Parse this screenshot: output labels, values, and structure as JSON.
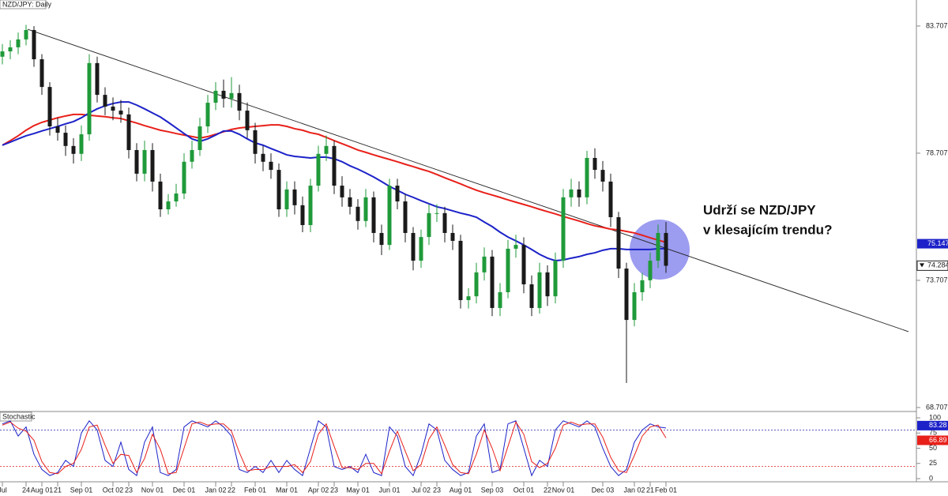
{
  "chart_data": {
    "type": "candlestick",
    "title": "NZD/JPY: Daily",
    "categories": [
      "Jul",
      null,
      null,
      "24",
      null,
      "Aug 01",
      null,
      "21",
      null,
      null,
      "Sep 01",
      null,
      null,
      null,
      "Oct 02",
      null,
      "23",
      null,
      null,
      "Nov 01",
      null,
      null,
      null,
      "Dec 01",
      null,
      null,
      null,
      "Jan 02",
      null,
      "22",
      null,
      null,
      "Feb 01",
      null,
      null,
      null,
      "Mar 01",
      null,
      null,
      null,
      "Apr 02",
      null,
      "23",
      null,
      null,
      "May 01",
      null,
      null,
      null,
      "Jun 01",
      null,
      null,
      null,
      "Jul 02",
      null,
      "23",
      null,
      null,
      "Aug 01",
      null,
      null,
      null,
      "Sep 03",
      null,
      null,
      null,
      "Oct 01",
      null,
      null,
      "22",
      null,
      "Nov 01",
      null,
      null,
      null,
      null,
      "Dec 03",
      null,
      null,
      null,
      "Jan 02",
      null,
      "21",
      null,
      "Feb 01"
    ],
    "open": [
      82.5,
      82.71,
      82.87,
      83.18,
      83.55,
      82.4,
      81.31,
      79.76,
      79.51,
      78.99,
      78.68,
      79.45,
      82.25,
      81.0,
      80.54,
      80.38,
      80.23,
      78.83,
      77.9,
      78.83,
      77.59,
      76.5,
      76.81,
      77.12,
      78.37,
      78.83,
      79.76,
      80.69,
      81.16,
      80.85,
      81.07,
      80.38,
      79.61,
      78.68,
      78.37,
      78.05,
      76.5,
      77.28,
      76.66,
      75.88,
      77.43,
      78.68,
      78.99,
      77.43,
      76.97,
      76.6,
      76.04,
      76.97,
      75.57,
      75.1,
      77.43,
      76.81,
      75.57,
      74.48,
      75.41,
      76.35,
      76.35,
      75.57,
      75.26,
      72.93,
      73.08,
      74.02,
      74.64,
      72.62,
      73.24,
      74.95,
      75.1,
      73.55,
      72.62,
      74.02,
      73.08,
      74.48,
      76.97,
      77.28,
      76.97,
      78.52,
      78.05,
      77.59,
      76.19,
      74.17,
      72.15,
      73.24,
      73.71,
      74.48,
      75.57
    ],
    "high": [
      83.0,
      83.15,
      83.45,
      83.75,
      83.7,
      82.6,
      81.5,
      80.1,
      79.8,
      79.3,
      79.8,
      82.6,
      82.5,
      81.3,
      80.9,
      80.8,
      80.5,
      79.1,
      79.2,
      79.1,
      77.9,
      77.1,
      77.5,
      78.7,
      79.2,
      80.1,
      81.0,
      81.5,
      81.6,
      81.7,
      81.4,
      80.7,
      79.9,
      79.0,
      78.7,
      78.3,
      77.6,
      77.6,
      77.0,
      77.7,
      79.0,
      79.4,
      79.2,
      77.8,
      77.3,
      76.9,
      77.3,
      77.2,
      75.9,
      77.7,
      77.7,
      77.1,
      75.8,
      75.7,
      76.7,
      76.7,
      76.6,
      75.9,
      75.5,
      73.4,
      74.4,
      75.0,
      74.9,
      73.6,
      75.3,
      75.5,
      75.4,
      73.9,
      74.4,
      74.3,
      74.8,
      77.3,
      77.7,
      77.6,
      78.8,
      78.9,
      78.4,
      77.9,
      76.4,
      74.4,
      73.6,
      74.0,
      74.8,
      75.9,
      76.0
    ],
    "low": [
      82.2,
      82.4,
      82.6,
      82.95,
      82.1,
      81.0,
      79.4,
      79.2,
      78.6,
      78.3,
      78.4,
      79.2,
      80.7,
      80.2,
      80.0,
      79.9,
      78.5,
      77.6,
      77.6,
      77.2,
      76.2,
      76.3,
      76.6,
      76.9,
      78.1,
      78.6,
      79.5,
      80.4,
      80.5,
      80.5,
      80.0,
      79.3,
      78.3,
      78.0,
      77.7,
      76.2,
      76.2,
      76.3,
      75.6,
      75.6,
      77.2,
      78.4,
      77.1,
      76.6,
      76.3,
      75.7,
      75.8,
      75.2,
      74.7,
      74.9,
      76.5,
      75.2,
      74.1,
      74.2,
      75.1,
      76.0,
      75.2,
      74.9,
      72.6,
      72.6,
      72.8,
      73.7,
      72.3,
      72.3,
      73.0,
      74.6,
      73.2,
      72.3,
      72.4,
      72.7,
      72.8,
      74.2,
      76.6,
      76.6,
      76.7,
      77.7,
      77.2,
      75.8,
      73.8,
      69.67,
      71.9,
      72.9,
      73.4,
      74.2,
      74.0
    ],
    "close": [
      82.71,
      82.87,
      83.18,
      83.55,
      82.4,
      81.31,
      79.76,
      79.51,
      78.99,
      78.68,
      79.45,
      82.25,
      81.0,
      80.54,
      80.38,
      80.23,
      78.83,
      77.9,
      78.83,
      77.59,
      76.5,
      76.81,
      77.12,
      78.37,
      78.83,
      79.76,
      80.69,
      81.16,
      80.85,
      81.07,
      80.38,
      79.61,
      78.68,
      78.37,
      78.05,
      76.5,
      77.28,
      76.66,
      75.88,
      77.43,
      78.68,
      78.99,
      77.43,
      76.97,
      76.6,
      76.04,
      76.97,
      75.57,
      75.1,
      77.43,
      76.81,
      75.57,
      74.48,
      75.41,
      76.35,
      76.35,
      75.57,
      75.26,
      72.93,
      73.08,
      74.02,
      74.64,
      72.62,
      73.24,
      74.95,
      75.1,
      73.55,
      72.62,
      74.02,
      73.08,
      74.48,
      76.97,
      77.28,
      76.97,
      78.52,
      78.05,
      77.59,
      76.19,
      74.17,
      72.15,
      73.24,
      73.71,
      74.48,
      75.57,
      74.28
    ],
    "up_color": "#1f9a3a",
    "down_color": "#1a1a1a",
    "series": [
      {
        "color": "#e8201a",
        "values": [
          79.02,
          79.2,
          79.39,
          79.61,
          79.79,
          79.92,
          80.01,
          80.1,
          80.17,
          80.23,
          80.23,
          80.2,
          80.17,
          80.14,
          80.1,
          80.07,
          79.98,
          79.89,
          79.79,
          79.7,
          79.61,
          79.55,
          79.48,
          79.42,
          79.36,
          79.3,
          79.36,
          79.45,
          79.55,
          79.64,
          79.7,
          79.73,
          79.76,
          79.79,
          79.82,
          79.82,
          79.76,
          79.67,
          79.61,
          79.51,
          79.45,
          79.33,
          79.2,
          79.08,
          78.96,
          78.83,
          78.74,
          78.64,
          78.55,
          78.46,
          78.37,
          78.27,
          78.18,
          78.08,
          77.99,
          77.87,
          77.74,
          77.62,
          77.5,
          77.37,
          77.25,
          77.15,
          77.06,
          76.97,
          76.87,
          76.78,
          76.69,
          76.6,
          76.5,
          76.41,
          76.32,
          76.22,
          76.13,
          76.04,
          75.94,
          75.85,
          75.79,
          75.72,
          75.69,
          75.63,
          75.57,
          75.48,
          75.38,
          75.29,
          75.2
        ]
      },
      {
        "color": "#1c22c8",
        "values": [
          79.02,
          79.14,
          79.27,
          79.39,
          79.48,
          79.58,
          79.67,
          79.76,
          79.86,
          79.95,
          80.1,
          80.29,
          80.45,
          80.57,
          80.66,
          80.72,
          80.72,
          80.6,
          80.45,
          80.29,
          80.13,
          79.92,
          79.7,
          79.48,
          79.27,
          79.17,
          79.27,
          79.42,
          79.58,
          79.58,
          79.45,
          79.27,
          79.11,
          79.02,
          78.89,
          78.77,
          78.64,
          78.58,
          78.55,
          78.52,
          78.55,
          78.55,
          78.49,
          78.37,
          78.21,
          78.08,
          77.93,
          77.77,
          77.59,
          77.4,
          77.25,
          77.09,
          76.97,
          76.84,
          76.72,
          76.6,
          76.53,
          76.44,
          76.35,
          76.28,
          76.19,
          76.0,
          75.82,
          75.6,
          75.41,
          75.26,
          75.1,
          74.92,
          74.73,
          74.58,
          74.48,
          74.51,
          74.58,
          74.64,
          74.73,
          74.79,
          74.89,
          74.95,
          74.95,
          74.92,
          74.92,
          74.92,
          74.92,
          74.95,
          74.95
        ]
      }
    ],
    "trendline": {
      "color": "#222222",
      "x": [
        3.2,
        114.7
      ],
      "values": [
        83.58,
        71.69
      ]
    },
    "ma_price": 75.147,
    "ma_price_color": "#1c22c8",
    "last_price": 74.284,
    "ylim": [
      68.55,
      84.73
    ],
    "yticks": [
      83.707,
      78.707,
      73.707,
      68.707
    ],
    "annotation": [
      "Udrží se NZD/JPY",
      "v klesajícím trendu?"
    ],
    "oscillator": {
      "title": "Stochastic",
      "ylim": [
        0,
        100
      ],
      "yticks": [
        100,
        75,
        50,
        25,
        0
      ],
      "levels": [
        80,
        20
      ],
      "series": [
        {
          "color": "#1c22c8",
          "values": [
            90,
            95,
            70,
            85,
            40,
            15,
            5,
            10,
            30,
            20,
            75,
            95,
            80,
            30,
            20,
            60,
            15,
            5,
            60,
            85,
            10,
            5,
            15,
            85,
            95,
            90,
            85,
            95,
            85,
            70,
            15,
            10,
            20,
            10,
            30,
            10,
            30,
            15,
            5,
            50,
            95,
            85,
            20,
            15,
            20,
            10,
            40,
            10,
            5,
            85,
            70,
            20,
            5,
            40,
            90,
            80,
            30,
            15,
            5,
            10,
            70,
            90,
            10,
            15,
            90,
            95,
            50,
            5,
            30,
            20,
            80,
            95,
            90,
            85,
            95,
            85,
            50,
            20,
            5,
            15,
            60,
            80,
            90,
            85,
            83.28
          ]
        },
        {
          "color": "#e8201a",
          "values": [
            88,
            93,
            83,
            78,
            63,
            28,
            10,
            8,
            20,
            25,
            48,
            85,
            88,
            55,
            25,
            40,
            38,
            10,
            33,
            73,
            48,
            8,
            10,
            50,
            90,
            93,
            88,
            90,
            90,
            78,
            43,
            13,
            15,
            15,
            20,
            20,
            20,
            23,
            10,
            28,
            73,
            90,
            53,
            18,
            18,
            15,
            25,
            25,
            8,
            45,
            78,
            45,
            13,
            23,
            65,
            85,
            55,
            23,
            10,
            8,
            40,
            80,
            50,
            13,
            53,
            93,
            73,
            28,
            18,
            25,
            50,
            88,
            93,
            88,
            90,
            90,
            68,
            35,
            13,
            10,
            38,
            70,
            85,
            88,
            66.89
          ]
        }
      ]
    }
  }
}
